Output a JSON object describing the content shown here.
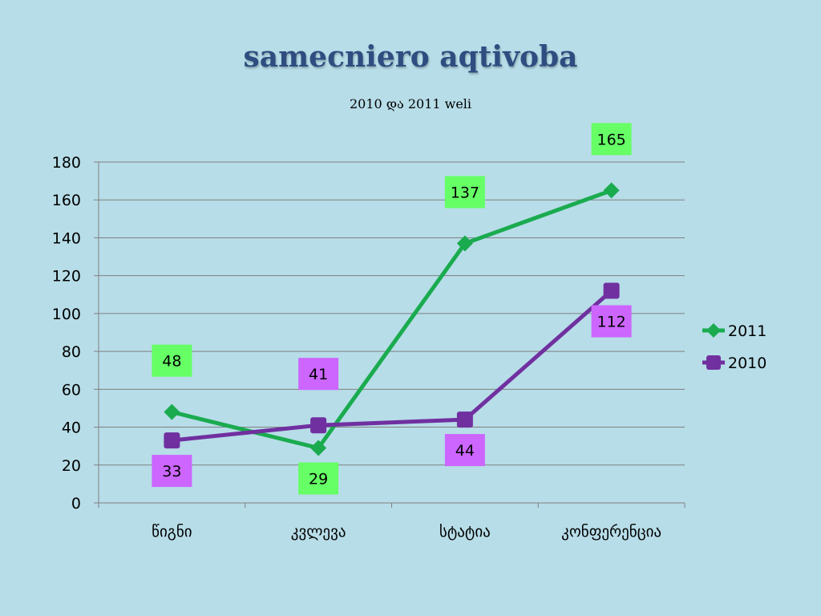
{
  "title": "samecniero aqtivoba",
  "subtitle": "2010 და 2011 weli",
  "colors": {
    "background": "#b7dde8",
    "series_2011": "#1aab4f",
    "series_2010": "#7030a0",
    "label_2011_bg": "#66ff66",
    "label_2010_bg": "#cc66ff",
    "grid": "#808080"
  },
  "chart_data": {
    "type": "line",
    "title": "samecniero aqtivoba",
    "subtitle": "2010 და 2011 weli",
    "categories": [
      "წიგნი",
      "კვლევა",
      "სტატია",
      "კონფერენცია"
    ],
    "series": [
      {
        "name": "2011",
        "values": [
          48,
          29,
          137,
          165
        ],
        "marker": "diamond",
        "color": "#1aab4f"
      },
      {
        "name": "2010",
        "values": [
          33,
          41,
          44,
          112
        ],
        "marker": "square",
        "color": "#7030a0"
      }
    ],
    "ylim": [
      0,
      180
    ],
    "yticks": [
      0,
      20,
      40,
      60,
      80,
      100,
      120,
      140,
      160,
      180
    ],
    "grid": true,
    "legend": "right",
    "data_labels": true
  }
}
